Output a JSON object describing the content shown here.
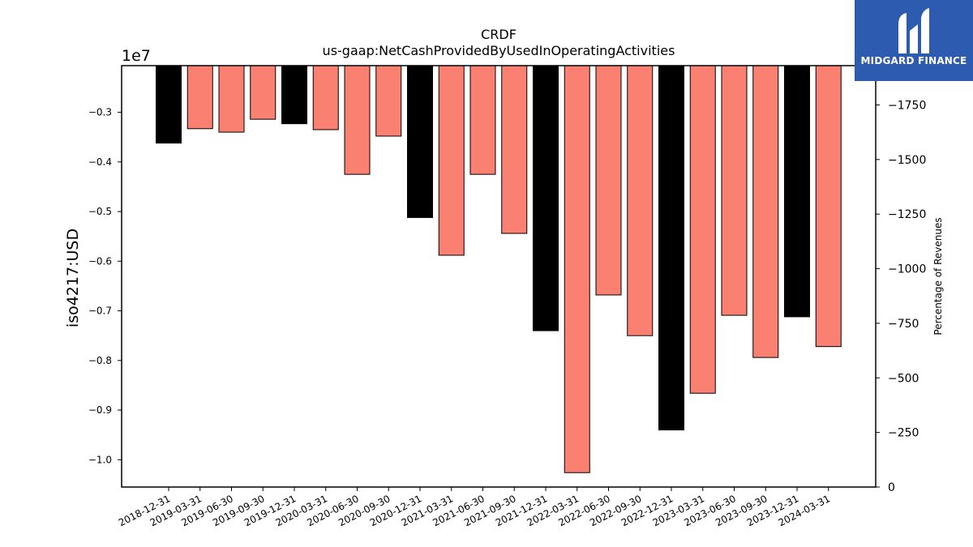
{
  "chart_data": {
    "type": "bar",
    "title": "CRDF",
    "subtitle": "us-gaap:NetCashProvidedByUsedInOperatingActivities",
    "ylabel": "iso4217:USD",
    "y_multiplier_label": "1e7",
    "y2label": "Percentage of Revenues",
    "categories": [
      "2018-12-31",
      "2019-03-31",
      "2019-06-30",
      "2019-09-30",
      "2019-12-31",
      "2020-03-31",
      "2020-06-30",
      "2020-09-30",
      "2020-12-31",
      "2021-03-31",
      "2021-06-30",
      "2021-09-30",
      "2021-12-31",
      "2022-03-31",
      "2022-06-30",
      "2022-09-30",
      "2022-12-31",
      "2023-03-31",
      "2023-06-30",
      "2023-09-30",
      "2023-12-31",
      "2024-03-31"
    ],
    "values": [
      -3620000,
      -3330000,
      -3400000,
      -3140000,
      -3230000,
      -3350000,
      -4250000,
      -3480000,
      -5120000,
      -5880000,
      -4250000,
      -5440000,
      -7400000,
      -10260000,
      -6680000,
      -7500000,
      -9400000,
      -8660000,
      -7090000,
      -7940000,
      -7120000,
      -7720000
    ],
    "bar_colors": [
      "#000000",
      "#fa8072",
      "#fa8072",
      "#fa8072",
      "#000000",
      "#fa8072",
      "#fa8072",
      "#fa8072",
      "#000000",
      "#fa8072",
      "#fa8072",
      "#fa8072",
      "#000000",
      "#fa8072",
      "#fa8072",
      "#fa8072",
      "#000000",
      "#fa8072",
      "#fa8072",
      "#fa8072",
      "#000000",
      "#fa8072"
    ],
    "ylim": [
      -10550000,
      -2060000
    ],
    "yticks": [
      -3000000,
      -4000000,
      -5000000,
      -6000000,
      -7000000,
      -8000000,
      -9000000,
      -10000000
    ],
    "ytick_labels": [
      "−0.3",
      "−0.4",
      "−0.5",
      "−0.6",
      "−0.7",
      "−0.8",
      "−0.9",
      "−1.0"
    ],
    "y2lim": [
      0,
      -1930
    ],
    "y2ticks": [
      0,
      -250,
      -500,
      -750,
      -1000,
      -1250,
      -1500,
      -1750
    ],
    "y2tick_labels": [
      "0",
      "−250",
      "−500",
      "−750",
      "−1000",
      "−1250",
      "−1500",
      "−1750"
    ],
    "grid": false,
    "legend": "none"
  },
  "logo": {
    "text": "MIDGARD FINANCE",
    "color": "#2d5bb0"
  }
}
